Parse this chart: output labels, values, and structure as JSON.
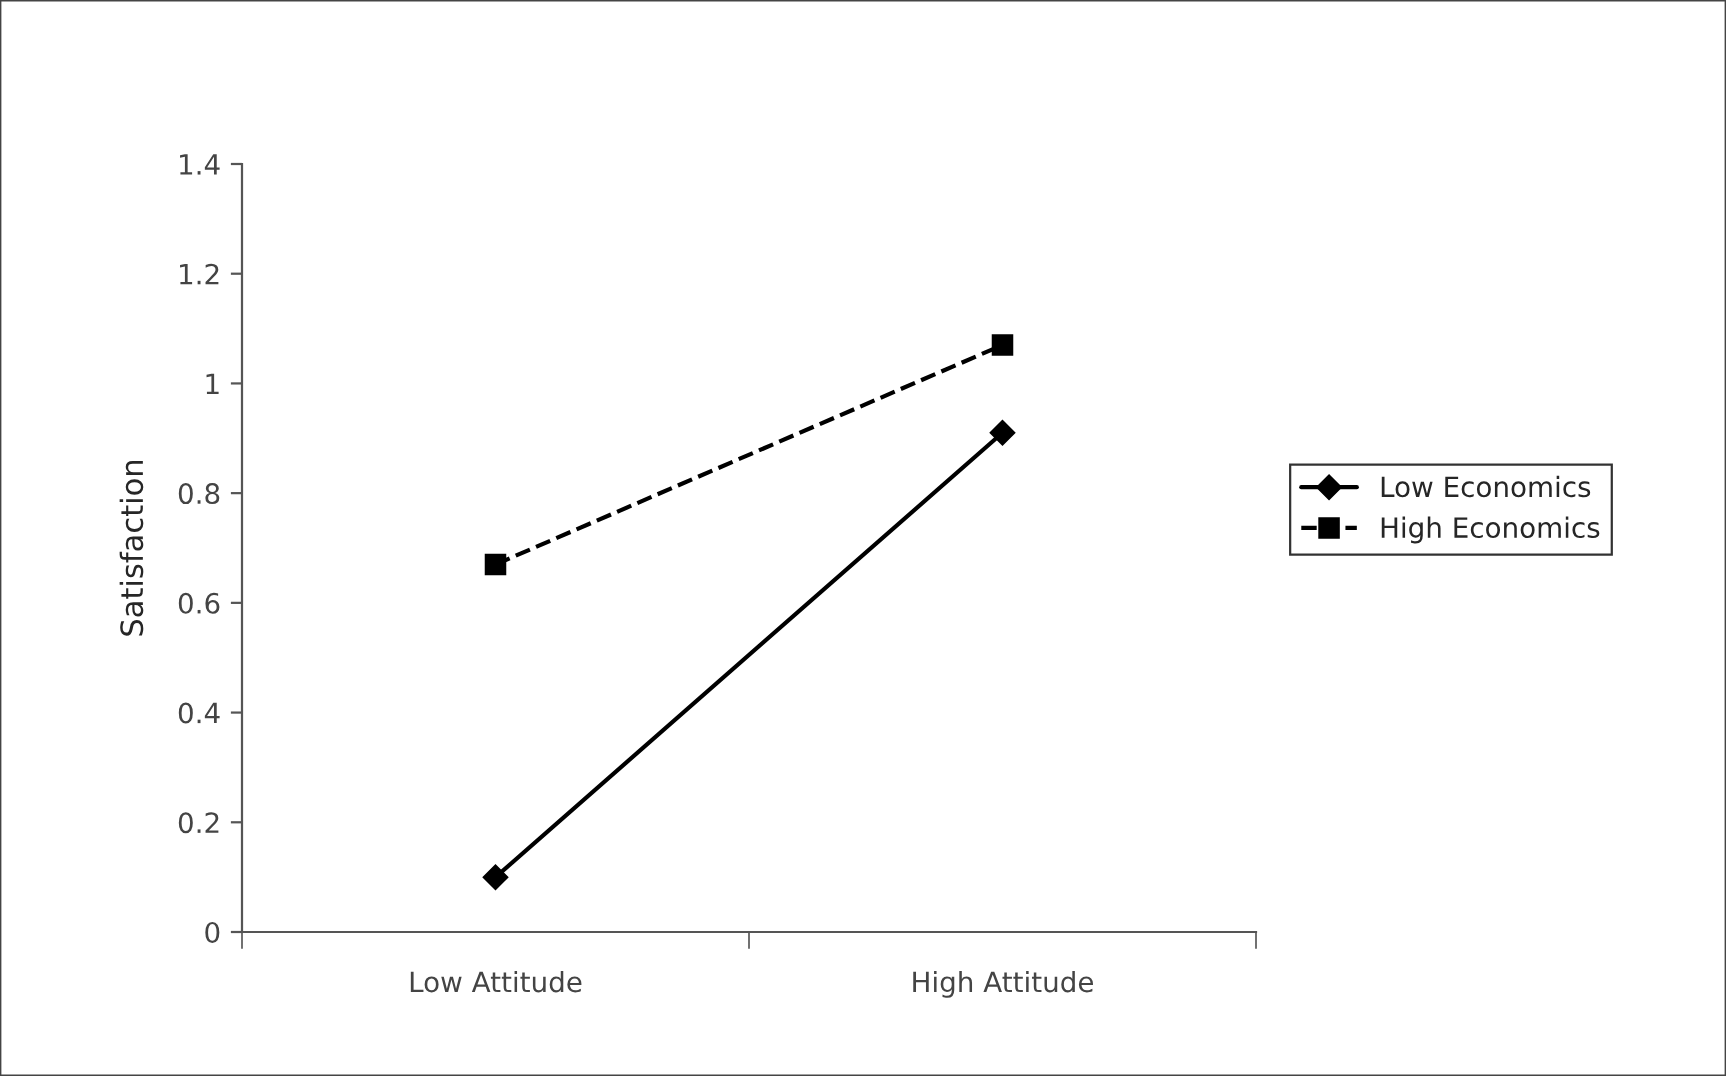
{
  "chart_data": {
    "type": "line",
    "ylabel": "Satisfaction",
    "categories": [
      "Low Attitude",
      "High Attitude"
    ],
    "series": [
      {
        "name": "Low Economics",
        "color": "#000000",
        "values": [
          0.1,
          0.91
        ],
        "marker": "diamond",
        "line_style": "solid"
      },
      {
        "name": "High Economics",
        "color": "#000000",
        "values": [
          0.67,
          1.07
        ],
        "marker": "square",
        "line_style": "dashed"
      }
    ],
    "ylim": [
      0,
      1.4
    ],
    "yticks": [
      0,
      0.2,
      0.4,
      0.6,
      0.8,
      1,
      1.2,
      1.4
    ],
    "grid": false,
    "legend": "right"
  }
}
